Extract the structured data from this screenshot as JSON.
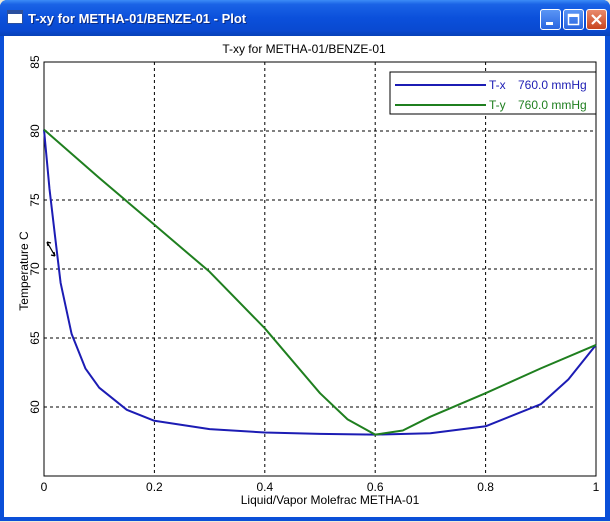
{
  "window": {
    "title": "T-xy for METHA-01/BENZE-01 - Plot"
  },
  "chart_data": {
    "type": "line",
    "title": "T-xy for METHA-01/BENZE-01",
    "xlabel": "Liquid/Vapor Molefrac METHA-01",
    "ylabel": "Temperature  C",
    "xlim": [
      0,
      1
    ],
    "ylim": [
      55,
      85
    ],
    "x_ticks": [
      0,
      0.2,
      0.4,
      0.6,
      0.8,
      1
    ],
    "y_ticks": [
      60,
      65,
      70,
      75,
      80,
      85
    ],
    "grid": true,
    "legend_position": "top-right",
    "series": [
      {
        "name": "T-x",
        "condition": "760.0 mmHg",
        "color": "#1C1CB4",
        "x": [
          0,
          0.01,
          0.02,
          0.03,
          0.05,
          0.075,
          0.1,
          0.15,
          0.2,
          0.3,
          0.4,
          0.5,
          0.6,
          0.7,
          0.8,
          0.9,
          0.95,
          1
        ],
        "y": [
          80.1,
          75.8,
          72.4,
          69.0,
          65.3,
          62.8,
          61.4,
          59.8,
          59.0,
          58.4,
          58.15,
          58.05,
          58.0,
          58.1,
          58.6,
          60.2,
          62.0,
          64.5
        ]
      },
      {
        "name": "T-y",
        "condition": "760.0 mmHg",
        "color": "#1F7F1F",
        "x": [
          0,
          0.1,
          0.2,
          0.3,
          0.4,
          0.5,
          0.55,
          0.6,
          0.65,
          0.7,
          0.8,
          0.9,
          1
        ],
        "y": [
          80.1,
          76.6,
          73.2,
          69.8,
          65.7,
          61.0,
          59.1,
          58.0,
          58.3,
          59.3,
          61.0,
          62.8,
          64.5
        ]
      }
    ]
  }
}
